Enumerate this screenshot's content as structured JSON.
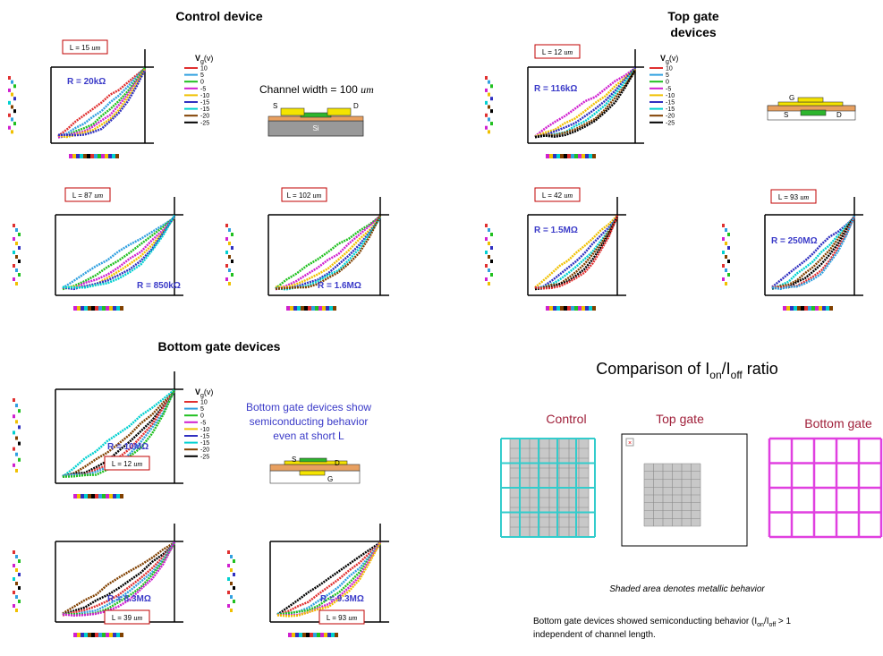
{
  "control": {
    "title": "Control device",
    "channel_width": "Channel width = 100",
    "channel_unit": "um",
    "stack": {
      "source": "S",
      "drain": "D",
      "substrate": "Si"
    }
  },
  "top_gate": {
    "title_lines": [
      "Top gate",
      "devices"
    ],
    "stack": {
      "gate": "G",
      "source": "S",
      "drain": "D"
    }
  },
  "bottom_gate": {
    "title": "Bottom gate devices",
    "note_lines": [
      "Bottom gate devices show",
      "semiconducting behavior",
      "even at short L"
    ],
    "stack": {
      "source": "S",
      "drain": "D",
      "gate": "G"
    }
  },
  "vg_legend": {
    "symbol": "V",
    "subscript": "g",
    "unit": "(v)",
    "values": [
      "10",
      "5",
      "0",
      "-5",
      "-10",
      "-15",
      "-15",
      "-20",
      "-25"
    ]
  },
  "plots": [
    {
      "length": "L = 15",
      "unit": "um",
      "resistance": "R = 20kΩ"
    },
    {
      "length": "L = 87",
      "unit": "um",
      "resistance": "R = 850kΩ"
    },
    {
      "length": "L = 102",
      "unit": "um",
      "resistance": "R = 1.6MΩ"
    },
    {
      "length": "L = 12",
      "unit": "um",
      "resistance": "R = 116kΩ"
    },
    {
      "length": "L = 42",
      "unit": "um",
      "resistance": "R = 1.5MΩ"
    },
    {
      "length": "L = 93",
      "unit": "um",
      "resistance": "R = 250MΩ"
    },
    {
      "length": "L = 12",
      "unit": "um",
      "resistance": "R = 10MΩ"
    },
    {
      "length": "L = 39",
      "unit": "um",
      "resistance": "R = 8.3MΩ"
    },
    {
      "length": "L = 93",
      "unit": "um",
      "resistance": "R = 9.3MΩ"
    }
  ],
  "comparison": {
    "title_parts": [
      "Comparison of I",
      "on",
      "/I",
      "off",
      " ratio"
    ],
    "columns": [
      "Control",
      "Top gate",
      "Bottom gate"
    ],
    "note": "Shaded area denotes metallic behavior",
    "summary_parts": [
      "Bottom gate devices showed semiconducting behavior (I",
      "on",
      "/I",
      "off",
      " > 1"
    ],
    "summary_line2": "independent of channel length."
  }
}
